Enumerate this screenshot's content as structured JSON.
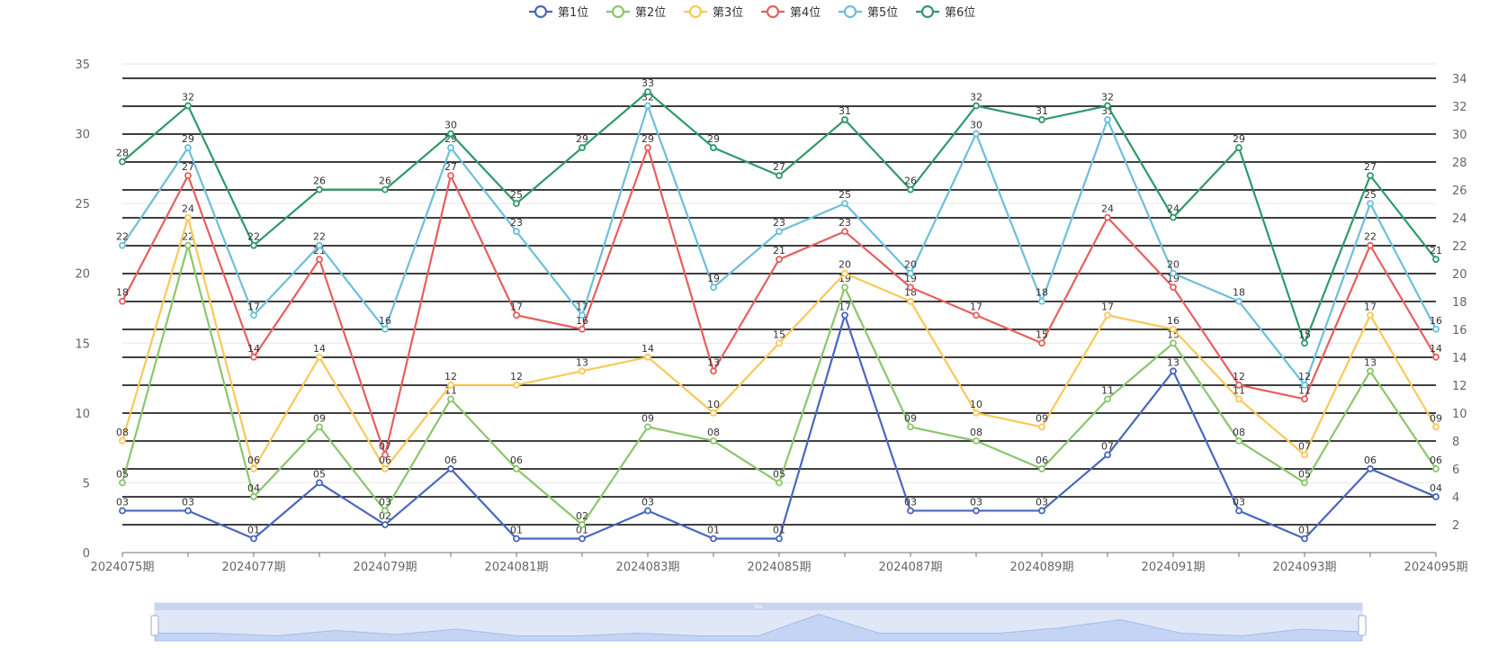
{
  "chart_data": {
    "type": "line",
    "title": "",
    "xlabel": "",
    "ylabel": "",
    "x": [
      "2024075期",
      "2024076期",
      "2024077期",
      "2024078期",
      "2024079期",
      "2024080期",
      "2024081期",
      "2024082期",
      "2024083期",
      "2024084期",
      "2024085期",
      "2024086期",
      "2024087期",
      "2024088期",
      "2024089期",
      "2024090期",
      "2024091期",
      "2024092期",
      "2024093期",
      "2024094期",
      "2024095期"
    ],
    "x_tick_labels_shown": [
      "2024075期",
      "2024077期",
      "2024079期",
      "2024081期",
      "2024083期",
      "2024085期",
      "2024087期",
      "2024089期",
      "2024091期",
      "2024093期",
      "2024095期"
    ],
    "ylim": [
      0,
      35
    ],
    "y_ticks": [
      0,
      5,
      10,
      15,
      20,
      25,
      30,
      35
    ],
    "y2_ticks": [
      2,
      4,
      6,
      8,
      10,
      12,
      14,
      16,
      18,
      20,
      22,
      24,
      26,
      28,
      30,
      32,
      34
    ],
    "legend_position": "top-center",
    "grid": true,
    "series": [
      {
        "name": "第1位",
        "color": "#4a66bf",
        "values": [
          3,
          3,
          1,
          5,
          2,
          6,
          1,
          1,
          3,
          1,
          1,
          17,
          3,
          3,
          3,
          7,
          13,
          3,
          1,
          6,
          4
        ]
      },
      {
        "name": "第2位",
        "color": "#8cc66b",
        "values": [
          5,
          22,
          4,
          9,
          3,
          11,
          6,
          2,
          9,
          8,
          5,
          19,
          9,
          8,
          6,
          11,
          15,
          8,
          5,
          13,
          6
        ]
      },
      {
        "name": "第3位",
        "color": "#fac858",
        "values": [
          8,
          24,
          6,
          14,
          6,
          12,
          12,
          13,
          14,
          10,
          15,
          20,
          18,
          10,
          9,
          17,
          16,
          11,
          7,
          17,
          9
        ]
      },
      {
        "name": "第4位",
        "color": "#e65f5f",
        "values": [
          18,
          27,
          14,
          21,
          7,
          27,
          17,
          16,
          29,
          13,
          21,
          23,
          19,
          17,
          15,
          24,
          19,
          12,
          11,
          22,
          14
        ]
      },
      {
        "name": "第5位",
        "color": "#6cbfda",
        "values": [
          22,
          29,
          17,
          22,
          16,
          29,
          23,
          17,
          32,
          19,
          23,
          25,
          20,
          30,
          18,
          31,
          20,
          18,
          12,
          25,
          16
        ]
      },
      {
        "name": "第6位",
        "color": "#2f9a6a",
        "values": [
          28,
          32,
          22,
          26,
          26,
          30,
          25,
          29,
          33,
          29,
          27,
          31,
          26,
          32,
          31,
          32,
          24,
          29,
          15,
          27,
          21
        ]
      }
    ]
  }
}
